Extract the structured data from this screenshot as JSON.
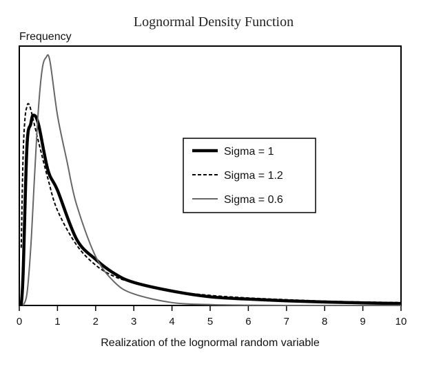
{
  "chart_data": {
    "type": "line",
    "title": "Lognormal Density Function",
    "ylabel": "Frequency",
    "xlabel": "Realization of the lognormal random variable",
    "xlim": [
      0,
      10
    ],
    "x_ticks": [
      "0",
      "1",
      "2",
      "3",
      "4",
      "5",
      "6",
      "7",
      "8",
      "9",
      "10"
    ],
    "y_ticks_visible": false,
    "grid": false,
    "legend_placement": "center-right",
    "series": [
      {
        "name": "Sigma = 1",
        "color": "#000000",
        "style": "solid-thick",
        "x": [
          0.05,
          0.1,
          0.2,
          0.3,
          0.368,
          0.5,
          0.75,
          1.0,
          1.5,
          2.0,
          2.5,
          3.0,
          4.0,
          5.0,
          6.0,
          7.0,
          8.0,
          9.0,
          10.0
        ],
        "y": [
          0.0,
          0.11,
          0.55,
          0.63,
          0.66,
          0.63,
          0.47,
          0.4,
          0.23,
          0.16,
          0.11,
          0.08,
          0.05,
          0.03,
          0.022,
          0.016,
          0.012,
          0.009,
          0.007
        ]
      },
      {
        "name": "Sigma = 1.2",
        "color": "#000000",
        "style": "dashed",
        "x": [
          0.05,
          0.1,
          0.15,
          0.2,
          0.237,
          0.3,
          0.5,
          0.75,
          1.0,
          1.5,
          2.0,
          2.5,
          3.0,
          4.0,
          5.0,
          6.0,
          7.0,
          8.0,
          9.0,
          10.0
        ],
        "y": [
          0.2,
          0.52,
          0.65,
          0.69,
          0.7,
          0.68,
          0.57,
          0.44,
          0.33,
          0.21,
          0.14,
          0.1,
          0.08,
          0.05,
          0.035,
          0.026,
          0.02,
          0.015,
          0.012,
          0.01
        ]
      },
      {
        "name": "Sigma = 0.6",
        "color": "#666666",
        "style": "solid",
        "x": [
          0.1,
          0.2,
          0.3,
          0.4,
          0.5,
          0.6,
          0.698,
          0.8,
          1.0,
          1.25,
          1.5,
          2.0,
          2.5,
          3.0,
          4.0,
          5.0,
          6.0,
          7.0,
          8.0,
          10.0
        ],
        "y": [
          0.0,
          0.04,
          0.2,
          0.45,
          0.68,
          0.82,
          0.86,
          0.85,
          0.66,
          0.5,
          0.35,
          0.17,
          0.08,
          0.04,
          0.01,
          0.003,
          0.001,
          0.0,
          0.0,
          0.0
        ]
      }
    ]
  }
}
